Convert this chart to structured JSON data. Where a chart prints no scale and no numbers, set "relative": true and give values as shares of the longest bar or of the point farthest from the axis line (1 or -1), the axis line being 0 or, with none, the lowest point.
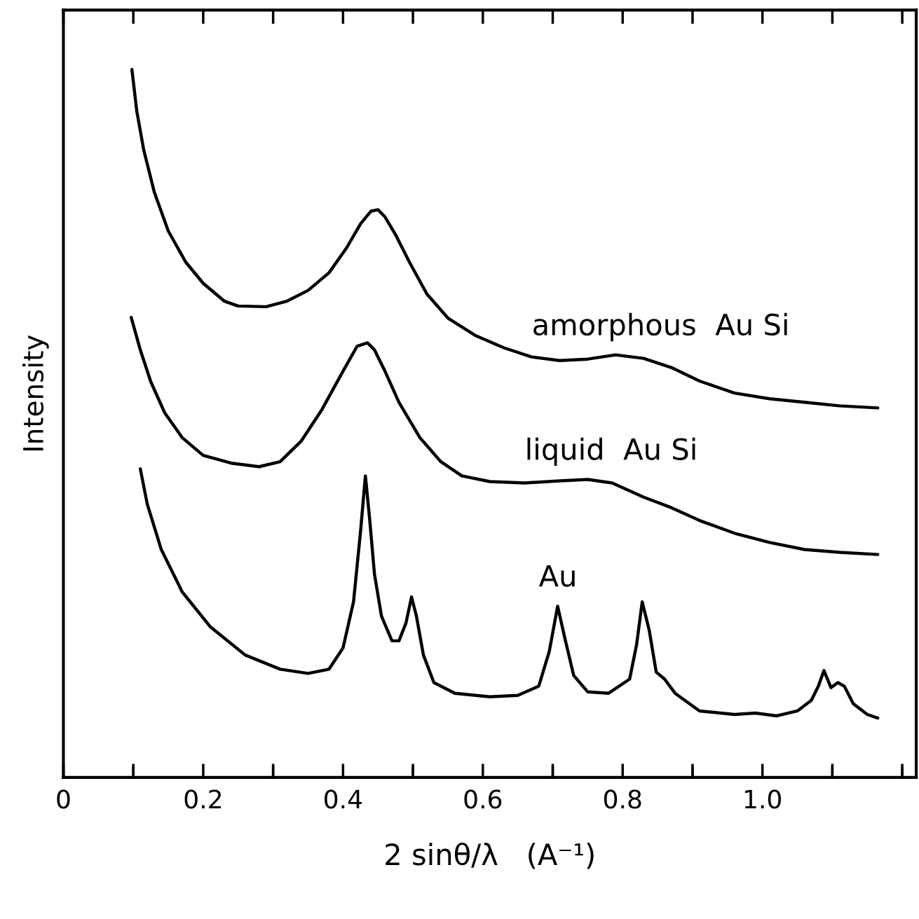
{
  "chart_data": {
    "type": "line",
    "relative": true,
    "xlabel": "2 sinθ/λ   (A⁻¹)",
    "ylabel": "Intensity",
    "xlim": [
      0,
      1.22
    ],
    "xticks": [
      0,
      {
        "value": 0.1,
        "label": null
      },
      0.2,
      {
        "value": 0.3,
        "label": null
      },
      0.4,
      {
        "value": 0.5,
        "label": null
      },
      0.6,
      {
        "value": 0.7,
        "label": null
      },
      0.8,
      {
        "value": 0.9,
        "label": null
      },
      {
        "value": 1.0,
        "label": "1.0"
      },
      {
        "value": 1.1,
        "label": null
      },
      {
        "value": 1.2,
        "label": null
      }
    ],
    "grid": false,
    "legend": false,
    "marker": "none",
    "line_style": "solid",
    "series": [
      {
        "name": "amorphous  Au Si",
        "color": "#000000",
        "x": [
          0.098,
          0.105,
          0.115,
          0.13,
          0.15,
          0.175,
          0.2,
          0.23,
          0.25,
          0.29,
          0.32,
          0.35,
          0.38,
          0.405,
          0.425,
          0.44,
          0.45,
          0.46,
          0.475,
          0.495,
          0.52,
          0.55,
          0.59,
          0.63,
          0.67,
          0.71,
          0.75,
          0.79,
          0.83,
          0.87,
          0.91,
          0.96,
          1.01,
          1.06,
          1.11,
          1.165
        ],
        "values": [
          1.0,
          0.941,
          0.886,
          0.827,
          0.772,
          0.728,
          0.698,
          0.673,
          0.666,
          0.665,
          0.673,
          0.688,
          0.713,
          0.748,
          0.782,
          0.8,
          0.802,
          0.792,
          0.767,
          0.728,
          0.683,
          0.649,
          0.624,
          0.607,
          0.594,
          0.589,
          0.591,
          0.597,
          0.592,
          0.579,
          0.56,
          0.543,
          0.535,
          0.53,
          0.525,
          0.522
        ]
      },
      {
        "name": "liquid  Au Si",
        "color": "#000000",
        "x": [
          0.097,
          0.11,
          0.125,
          0.145,
          0.17,
          0.2,
          0.24,
          0.28,
          0.31,
          0.34,
          0.37,
          0.4,
          0.42,
          0.435,
          0.445,
          0.46,
          0.48,
          0.51,
          0.54,
          0.57,
          0.61,
          0.66,
          0.71,
          0.75,
          0.785,
          0.83,
          0.87,
          0.91,
          0.96,
          1.01,
          1.06,
          1.11,
          1.165
        ],
        "values": [
          0.65,
          0.604,
          0.559,
          0.515,
          0.48,
          0.455,
          0.444,
          0.439,
          0.446,
          0.475,
          0.52,
          0.574,
          0.609,
          0.614,
          0.604,
          0.574,
          0.53,
          0.48,
          0.446,
          0.426,
          0.418,
          0.416,
          0.419,
          0.421,
          0.416,
          0.396,
          0.381,
          0.363,
          0.345,
          0.332,
          0.322,
          0.318,
          0.315
        ]
      },
      {
        "name": "Au",
        "color": "#000000",
        "x": [
          0.11,
          0.12,
          0.14,
          0.17,
          0.21,
          0.26,
          0.31,
          0.35,
          0.38,
          0.4,
          0.415,
          0.425,
          0.432,
          0.438,
          0.445,
          0.455,
          0.47,
          0.48,
          0.49,
          0.498,
          0.505,
          0.515,
          0.53,
          0.56,
          0.61,
          0.65,
          0.68,
          0.695,
          0.707,
          0.717,
          0.73,
          0.75,
          0.78,
          0.81,
          0.82,
          0.828,
          0.838,
          0.848,
          0.86,
          0.875,
          0.91,
          0.96,
          0.99,
          1.02,
          1.05,
          1.07,
          1.08,
          1.088,
          1.098,
          1.108,
          1.117,
          1.13,
          1.15,
          1.165
        ],
        "values": [
          0.436,
          0.386,
          0.322,
          0.262,
          0.213,
          0.173,
          0.153,
          0.147,
          0.153,
          0.183,
          0.248,
          0.347,
          0.426,
          0.366,
          0.287,
          0.228,
          0.193,
          0.193,
          0.218,
          0.255,
          0.228,
          0.173,
          0.134,
          0.119,
          0.114,
          0.116,
          0.129,
          0.178,
          0.242,
          0.198,
          0.144,
          0.121,
          0.119,
          0.139,
          0.188,
          0.248,
          0.208,
          0.149,
          0.139,
          0.119,
          0.094,
          0.089,
          0.091,
          0.087,
          0.094,
          0.109,
          0.129,
          0.151,
          0.127,
          0.134,
          0.129,
          0.104,
          0.089,
          0.084
        ]
      }
    ]
  }
}
